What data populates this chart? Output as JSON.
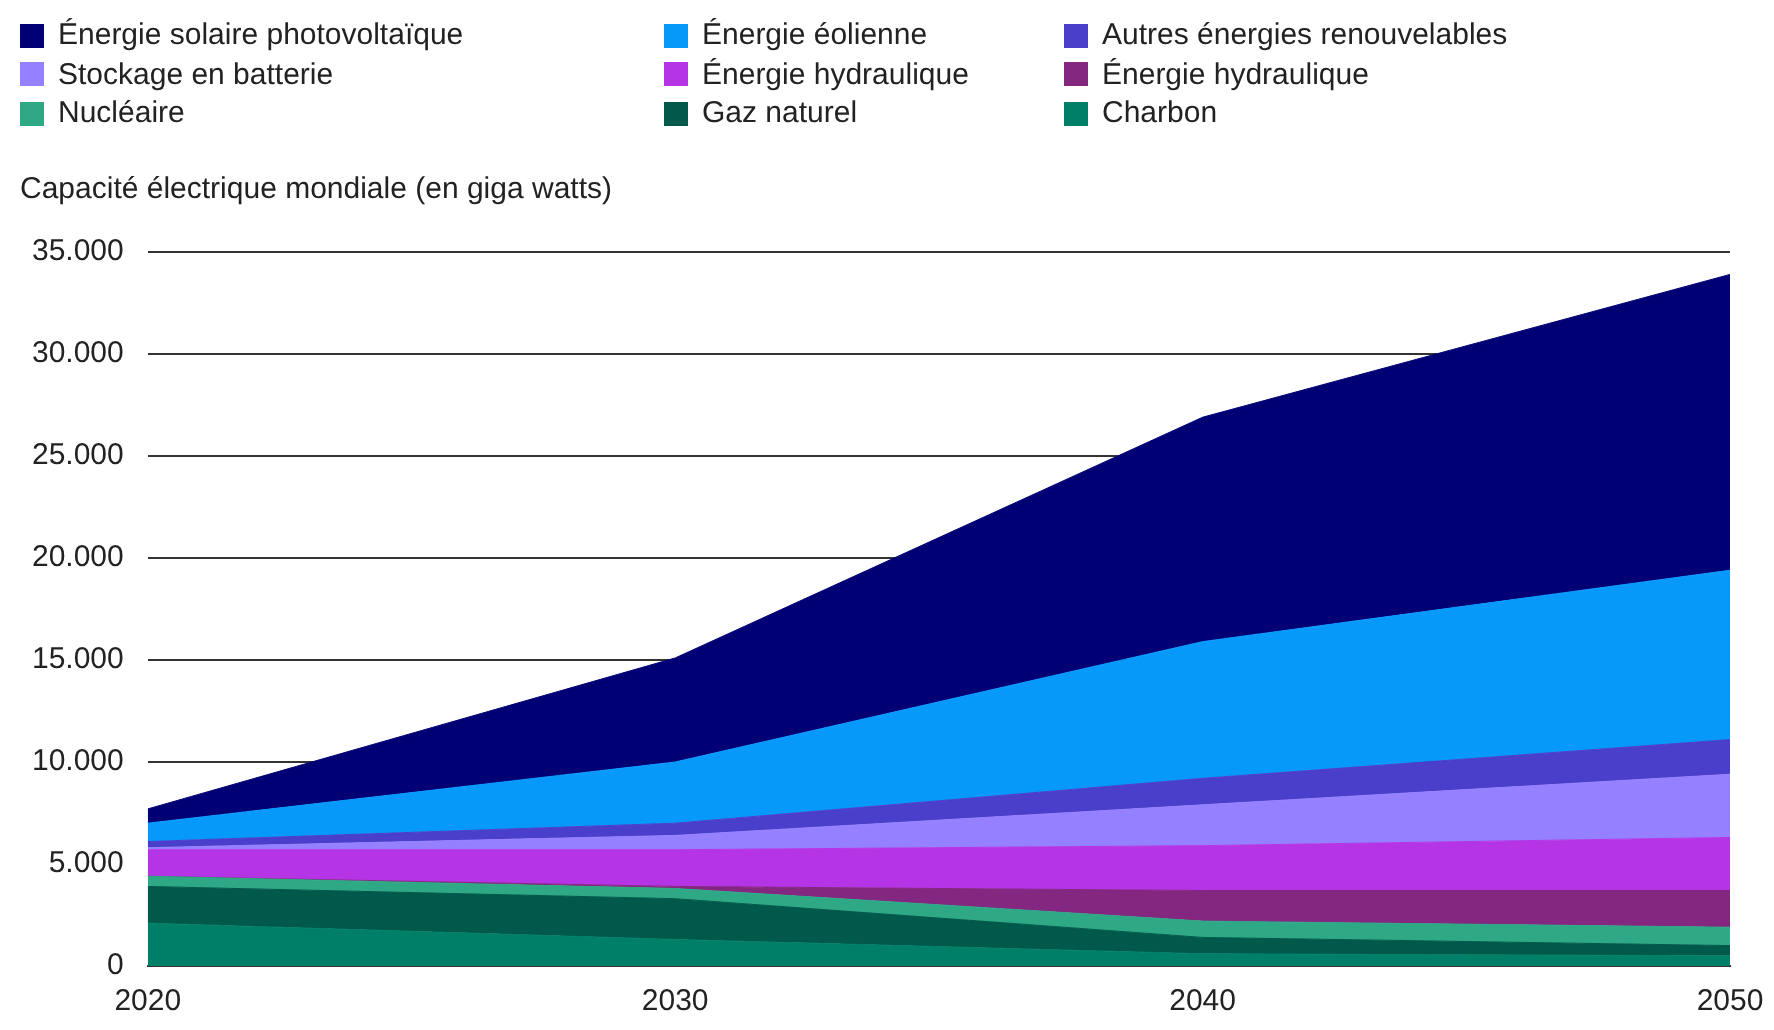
{
  "chart_data": {
    "type": "area",
    "stacked": true,
    "ylabel": "Capacité électrique mondiale (en giga watts)",
    "x": [
      2020,
      2030,
      2040,
      2050
    ],
    "xlim": [
      2020,
      2050
    ],
    "xticks": [
      2020,
      2030,
      2040,
      2050
    ],
    "ylim": [
      0,
      35000
    ],
    "yticks": [
      0,
      {
        "value": 5000,
        "label": "5.000"
      },
      {
        "value": 10000,
        "label": "10.000"
      },
      {
        "value": 15000,
        "label": "15.000"
      },
      {
        "value": 20000,
        "label": "20.000"
      },
      {
        "value": 25000,
        "label": "25.000"
      },
      {
        "value": 30000,
        "label": "30.000"
      },
      {
        "value": 35000,
        "label": "35.000"
      }
    ],
    "grid": "y",
    "legend": "top",
    "series": [
      {
        "name": "Charbon",
        "color": "#007f68",
        "values": [
          2100,
          1300,
          600,
          500
        ]
      },
      {
        "name": "Gaz naturel",
        "color": "#00594a",
        "values": [
          1800,
          2000,
          800,
          500
        ]
      },
      {
        "name": "Nucléaire",
        "color": "#2ea885",
        "values": [
          500,
          500,
          800,
          900
        ]
      },
      {
        "name": "Énergie hydraulique",
        "color": "#842781",
        "values": [
          0,
          100,
          1500,
          1800
        ]
      },
      {
        "name": "Énergie hydraulique",
        "color": "#b535e6",
        "values": [
          1300,
          1800,
          2200,
          2600
        ]
      },
      {
        "name": "Stockage en batterie",
        "color": "#9580ff",
        "values": [
          100,
          700,
          2000,
          3100
        ]
      },
      {
        "name": "Autres énergies renouvelables",
        "color": "#4a3fcb",
        "values": [
          300,
          600,
          1300,
          1700
        ]
      },
      {
        "name": "Énergie éolienne",
        "color": "#0699fa",
        "values": [
          900,
          3000,
          6700,
          8300
        ]
      },
      {
        "name": "Énergie solaire photovoltaïque",
        "color": "#000074",
        "values": [
          700,
          5100,
          11000,
          14500
        ]
      }
    ]
  }
}
